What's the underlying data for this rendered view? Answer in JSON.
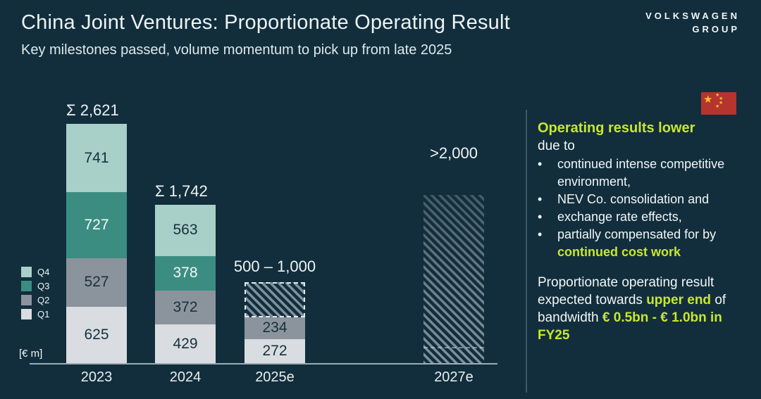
{
  "header": {
    "title": "China Joint Ventures: Proportionate Operating Result",
    "subtitle": "Key milestones passed, volume momentum to pick up from late 2025"
  },
  "logo": {
    "line1": "VOLKSWAGEN",
    "line2": "GROUP"
  },
  "colors": {
    "background": "#122e3c",
    "accent_lime": "#c8e72e",
    "text_primary": "#e9eef0",
    "axis": "#9aabb4",
    "divider": "#3c5965",
    "hatch_stripe": "#7e929c",
    "flag_red": "#b5342e",
    "flag_yellow": "#f2c52a"
  },
  "chart_data": {
    "type": "bar",
    "stacked": true,
    "title": "China Joint Ventures: Proportionate Operating Result",
    "unit_label": "[€ m]",
    "categories": [
      "2023",
      "2024",
      "2025e",
      "2027e"
    ],
    "series": [
      {
        "name": "Q1",
        "color": "#d9dde1",
        "label_color": "#16313e",
        "values": [
          625,
          429,
          272,
          null
        ]
      },
      {
        "name": "Q2",
        "color": "#8b949c",
        "label_color": "#16313e",
        "values": [
          527,
          372,
          234,
          null
        ]
      },
      {
        "name": "Q3",
        "color": "#3c8d81",
        "label_color": "#f4f8f9",
        "values": [
          727,
          378,
          null,
          null
        ]
      },
      {
        "name": "Q4",
        "color": "#a9cfc9",
        "label_color": "#16313e",
        "values": [
          741,
          563,
          null,
          null
        ]
      }
    ],
    "totals": [
      "Σ 2,621",
      "Σ 1,742",
      "500 – 1,000",
      ">2,000"
    ],
    "hatched_ranges": [
      null,
      null,
      {
        "from": 506,
        "to": 890,
        "outline": "dashed"
      },
      {
        "from": 0,
        "to": 1850,
        "outline": "none",
        "gradient_fade": true,
        "threshold_dash": true
      }
    ],
    "legend_order": [
      "Q4",
      "Q3",
      "Q2",
      "Q1"
    ],
    "legend_position": "left",
    "value_axis_visible": false
  },
  "right_panel": {
    "flag_icon": "china-flag",
    "star_char": "★",
    "heading": "Operating results lower",
    "due_to": "due to",
    "bullet_char": "•",
    "bullets": [
      {
        "parts": [
          {
            "text": "continued intense competitive environment,",
            "highlight": false
          }
        ]
      },
      {
        "parts": [
          {
            "text": "NEV Co. consolidation and",
            "highlight": false
          }
        ]
      },
      {
        "parts": [
          {
            "text": "exchange rate effects,",
            "highlight": false
          }
        ]
      },
      {
        "parts": [
          {
            "text": "partially compensated for by ",
            "highlight": false
          },
          {
            "text": "continued cost work",
            "highlight": true
          }
        ]
      }
    ],
    "outlook": {
      "parts": [
        {
          "text": "Proportionate operating result expected towards ",
          "highlight": false
        },
        {
          "text": "upper end",
          "highlight": true
        },
        {
          "text": " of bandwidth ",
          "highlight": false
        },
        {
          "text": "€ 0.5bn - € 1.0bn in FY25",
          "highlight": true
        }
      ]
    }
  }
}
